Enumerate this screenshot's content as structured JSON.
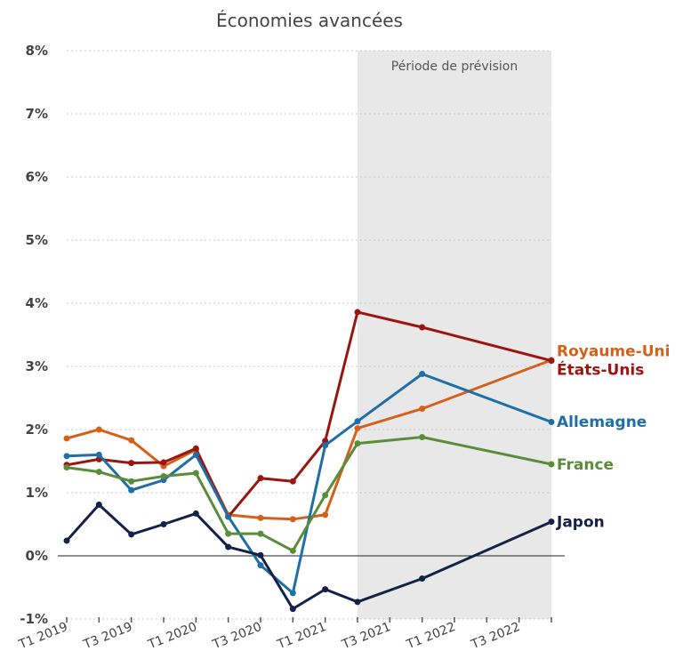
{
  "chart_data": {
    "type": "line",
    "title": "Économies avancées",
    "ylim": [
      -1,
      8
    ],
    "y_ticks": [
      "-1%",
      "0%",
      "1%",
      "2%",
      "3%",
      "4%",
      "5%",
      "6%",
      "7%",
      "8%"
    ],
    "x_labels": [
      "T1 2019",
      "T3 2019",
      "T1 2020",
      "T3 2020",
      "T1 2021",
      "T3 2021",
      "T1 2022",
      "T3 2022"
    ],
    "forecast_band": {
      "label": "Période de prévision",
      "from_index": 9,
      "to_index": 15
    },
    "grid": "horizontal",
    "series": [
      {
        "name": "Royaume-Uni",
        "color": "#d5601a",
        "points": [
          [
            0,
            1.86
          ],
          [
            1,
            2.0
          ],
          [
            2,
            1.83
          ],
          [
            3,
            1.42
          ],
          [
            4,
            1.68
          ],
          [
            5,
            0.65
          ],
          [
            6,
            0.6
          ],
          [
            7,
            0.58
          ],
          [
            8,
            0.65
          ],
          [
            9,
            2.02
          ],
          [
            11,
            2.33
          ],
          [
            15,
            3.1
          ]
        ]
      },
      {
        "name": "États-Unis",
        "color": "#9b1510",
        "points": [
          [
            0,
            1.44
          ],
          [
            1,
            1.53
          ],
          [
            2,
            1.47
          ],
          [
            3,
            1.48
          ],
          [
            4,
            1.7
          ],
          [
            5,
            0.62
          ],
          [
            6,
            1.23
          ],
          [
            7,
            1.18
          ],
          [
            8,
            1.82
          ],
          [
            9,
            3.86
          ],
          [
            11,
            3.62
          ],
          [
            15,
            3.09
          ]
        ]
      },
      {
        "name": "Allemagne",
        "color": "#1f6fa6",
        "points": [
          [
            0,
            1.58
          ],
          [
            1,
            1.6
          ],
          [
            2,
            1.04
          ],
          [
            3,
            1.2
          ],
          [
            4,
            1.6
          ],
          [
            5,
            0.62
          ],
          [
            6,
            -0.15
          ],
          [
            7,
            -0.59
          ],
          [
            8,
            1.75
          ],
          [
            9,
            2.13
          ],
          [
            11,
            2.88
          ],
          [
            15,
            2.12
          ]
        ]
      },
      {
        "name": "France",
        "color": "#5a8d3a",
        "points": [
          [
            0,
            1.4
          ],
          [
            1,
            1.33
          ],
          [
            2,
            1.18
          ],
          [
            3,
            1.26
          ],
          [
            4,
            1.31
          ],
          [
            5,
            0.35
          ],
          [
            6,
            0.35
          ],
          [
            7,
            0.08
          ],
          [
            8,
            0.96
          ],
          [
            9,
            1.78
          ],
          [
            11,
            1.88
          ],
          [
            15,
            1.45
          ]
        ]
      },
      {
        "name": "Japon",
        "color": "#13224a",
        "points": [
          [
            0,
            0.24
          ],
          [
            1,
            0.81
          ],
          [
            2,
            0.34
          ],
          [
            3,
            0.5
          ],
          [
            4,
            0.67
          ],
          [
            5,
            0.14
          ],
          [
            6,
            0.01
          ],
          [
            7,
            -0.84
          ],
          [
            8,
            -0.53
          ],
          [
            9,
            -0.73
          ],
          [
            11,
            -0.36
          ],
          [
            15,
            0.54
          ]
        ]
      }
    ]
  }
}
